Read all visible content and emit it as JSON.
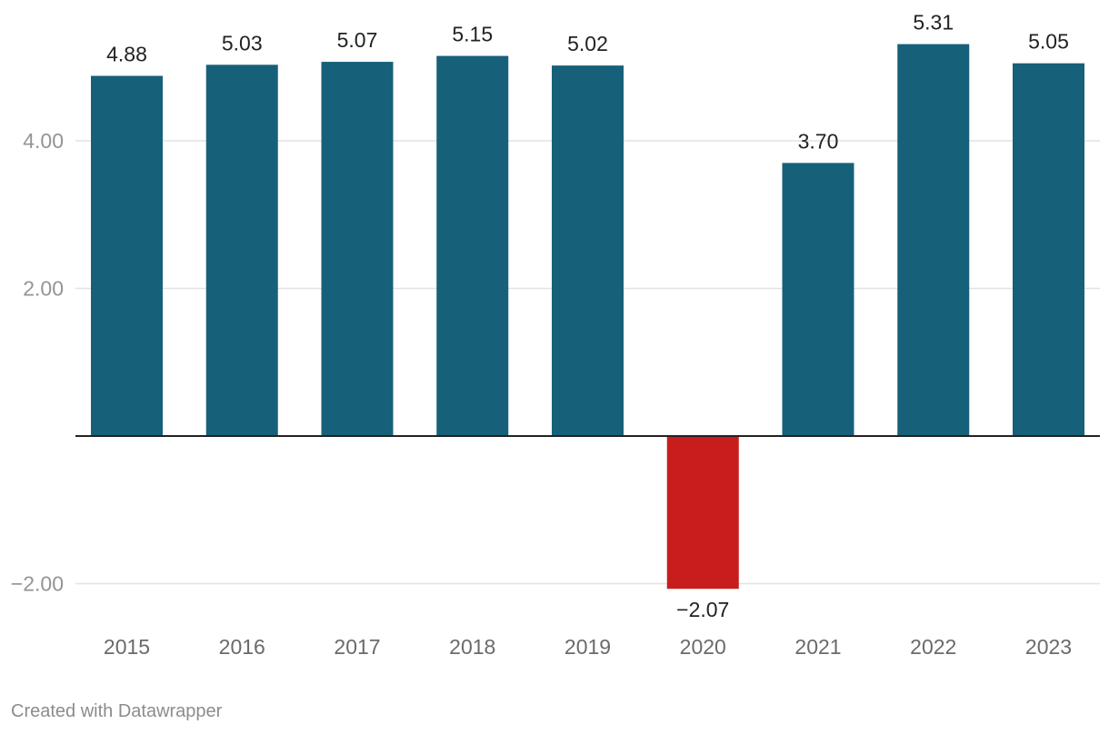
{
  "chart_data": {
    "type": "bar",
    "categories": [
      "2015",
      "2016",
      "2017",
      "2018",
      "2019",
      "2020",
      "2021",
      "2022",
      "2023"
    ],
    "values": [
      4.88,
      5.03,
      5.07,
      5.15,
      5.02,
      -2.07,
      3.7,
      5.31,
      5.05
    ],
    "value_labels": [
      "4.88",
      "5.03",
      "5.07",
      "5.15",
      "5.02",
      "−2.07",
      "3.70",
      "5.31",
      "5.05"
    ],
    "y_ticks": [
      -2,
      2,
      4
    ],
    "y_tick_labels": [
      "−2.00",
      "2.00",
      "4.00"
    ],
    "ylim": [
      -2.55,
      5.75
    ],
    "grid": true,
    "colors": {
      "positive": "#17607a",
      "negative": "#c71e1d"
    }
  },
  "footer": {
    "credit": "Created with Datawrapper"
  }
}
